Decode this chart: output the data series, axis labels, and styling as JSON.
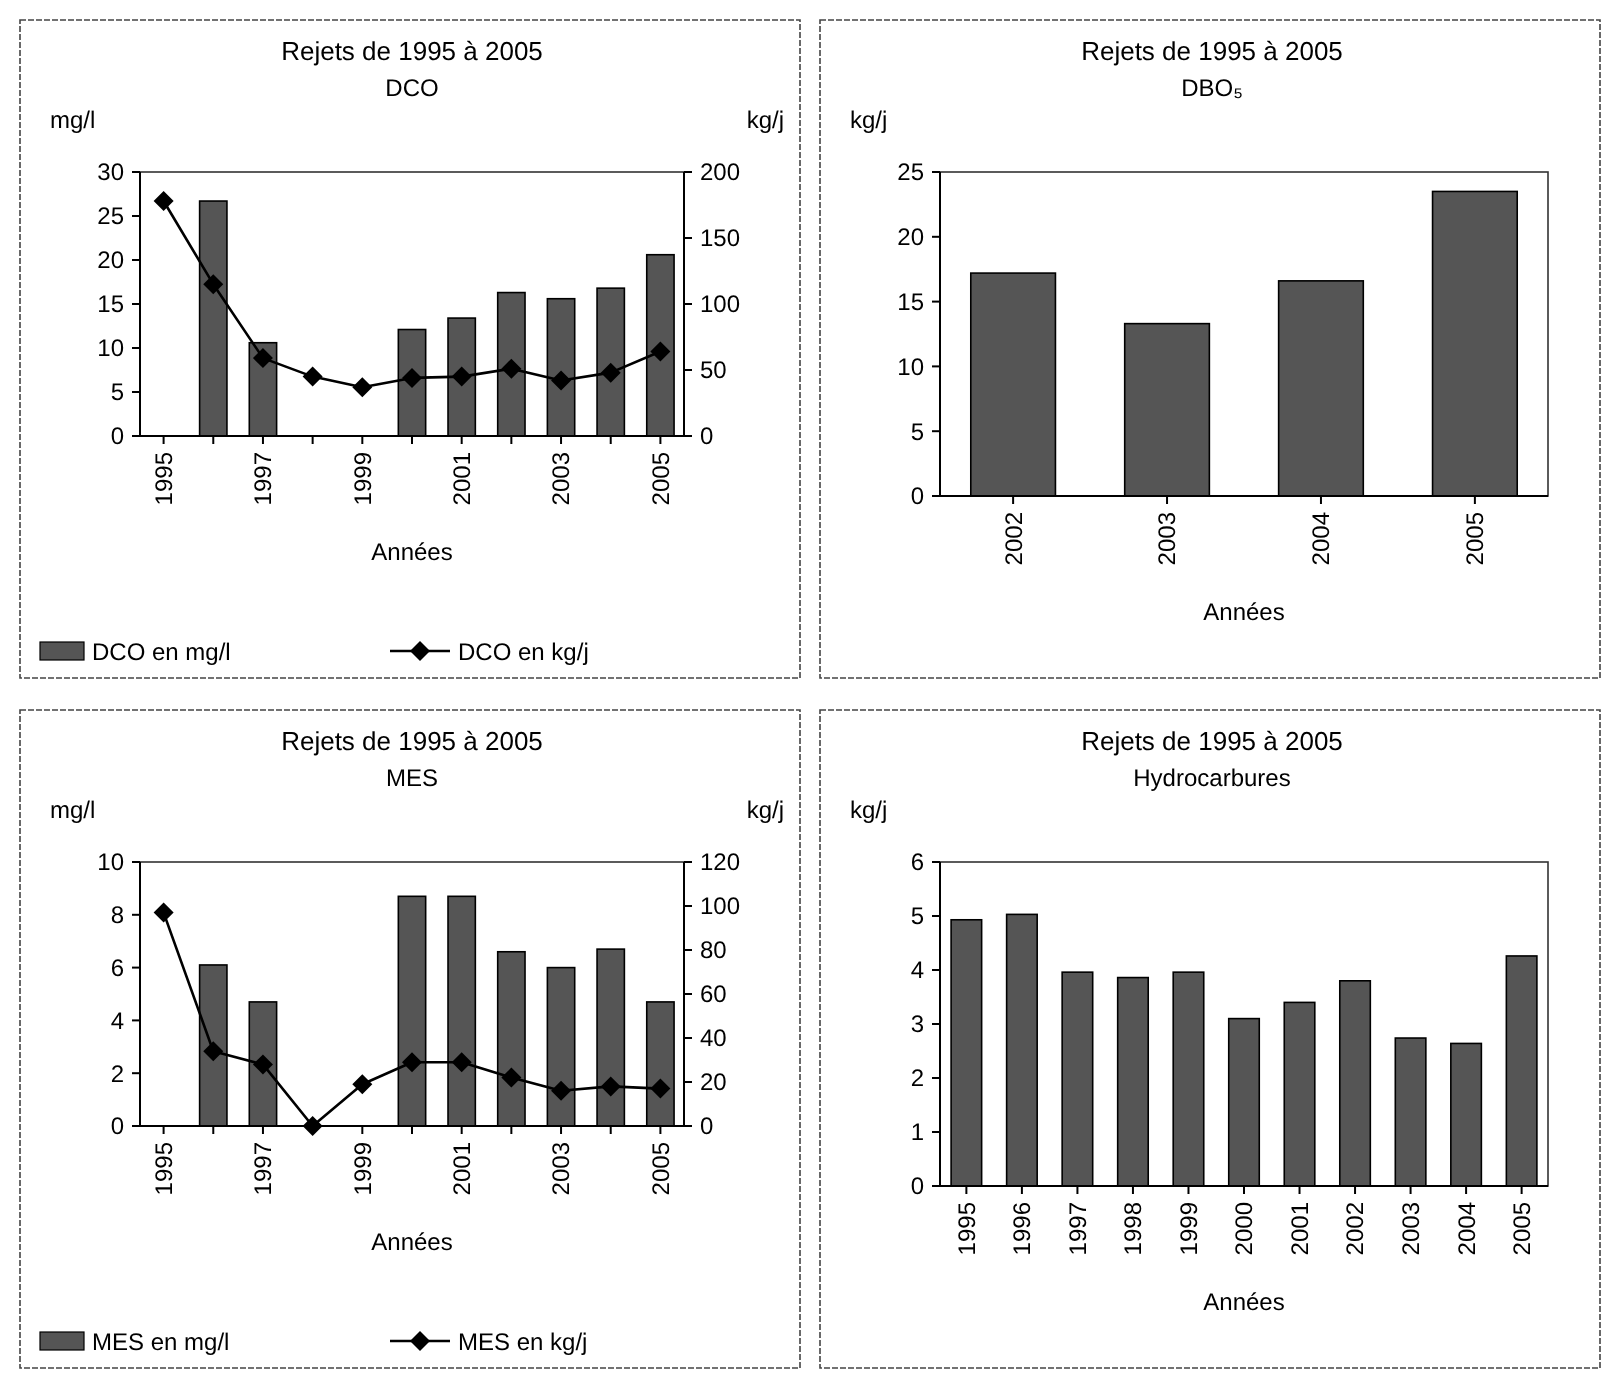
{
  "chart_data": [
    {
      "type": "bar",
      "title": "Rejets de 1995 à 2005",
      "subtitle": "DCO",
      "xlabel": "Années",
      "ylabel": "mg/l",
      "y2label": "kg/j",
      "categories": [
        "1995",
        null,
        "1997",
        null,
        "1999",
        null,
        "2001",
        null,
        "2003",
        null,
        "2005"
      ],
      "ylim": [
        0,
        30
      ],
      "yticks": [
        0,
        5,
        10,
        15,
        20,
        25,
        30
      ],
      "y2lim": [
        0,
        200
      ],
      "y2ticks": [
        0,
        50,
        100,
        150,
        200
      ],
      "legend": "bottom",
      "series": [
        {
          "name": "DCO en mg/l",
          "type": "bar",
          "color": "#555555",
          "values": [
            null,
            26.7,
            10.6,
            null,
            null,
            12.1,
            13.4,
            16.3,
            15.6,
            16.8,
            20.6
          ]
        },
        {
          "name": "DCO en kg/j",
          "type": "line",
          "axis": "y2",
          "color": "#000000",
          "marker": "diamond",
          "values": [
            178,
            115,
            59,
            45,
            37,
            44,
            45,
            51,
            42,
            48,
            64
          ]
        }
      ]
    },
    {
      "type": "bar",
      "title": "Rejets de 1995 à 2005",
      "subtitle": "DBO₅",
      "xlabel": "Années",
      "ylabel": "kg/j",
      "categories": [
        "2002",
        "2003",
        "2004",
        "2005"
      ],
      "ylim": [
        0,
        25
      ],
      "yticks": [
        0,
        5,
        10,
        15,
        20,
        25
      ],
      "color": "#555555",
      "values": [
        17.2,
        13.3,
        16.6,
        23.5
      ]
    },
    {
      "type": "bar",
      "title": "Rejets de 1995 à 2005",
      "subtitle": "MES",
      "xlabel": "Années",
      "ylabel": "mg/l",
      "y2label": "kg/j",
      "categories": [
        "1995",
        null,
        "1997",
        null,
        "1999",
        null,
        "2001",
        null,
        "2003",
        null,
        "2005"
      ],
      "ylim": [
        0,
        10
      ],
      "yticks": [
        0,
        2,
        4,
        6,
        8,
        10
      ],
      "y2lim": [
        0,
        120
      ],
      "y2ticks": [
        0,
        20,
        40,
        60,
        80,
        100,
        120
      ],
      "legend": "bottom",
      "series": [
        {
          "name": "MES en mg/l",
          "type": "bar",
          "color": "#555555",
          "values": [
            null,
            6.1,
            4.7,
            null,
            null,
            8.7,
            8.7,
            6.6,
            6.0,
            6.7,
            4.7
          ]
        },
        {
          "name": "MES en kg/j",
          "type": "line",
          "axis": "y2",
          "color": "#000000",
          "marker": "diamond",
          "values": [
            97,
            34,
            28,
            0,
            19,
            29,
            29,
            22,
            16,
            18,
            17
          ]
        }
      ]
    },
    {
      "type": "bar",
      "title": "Rejets de 1995 à 2005",
      "subtitle": "Hydrocarbures",
      "xlabel": "Années",
      "ylabel": "kg/j",
      "categories": [
        "1995",
        "1996",
        "1997",
        "1998",
        "1999",
        "2000",
        "2001",
        "2002",
        "2003",
        "2004",
        "2005"
      ],
      "ylim": [
        0,
        6
      ],
      "yticks": [
        0,
        1,
        2,
        3,
        4,
        5,
        6
      ],
      "color": "#555555",
      "values": [
        4.93,
        5.03,
        3.96,
        3.86,
        3.96,
        3.1,
        3.4,
        3.8,
        2.74,
        2.64,
        4.26
      ]
    }
  ]
}
